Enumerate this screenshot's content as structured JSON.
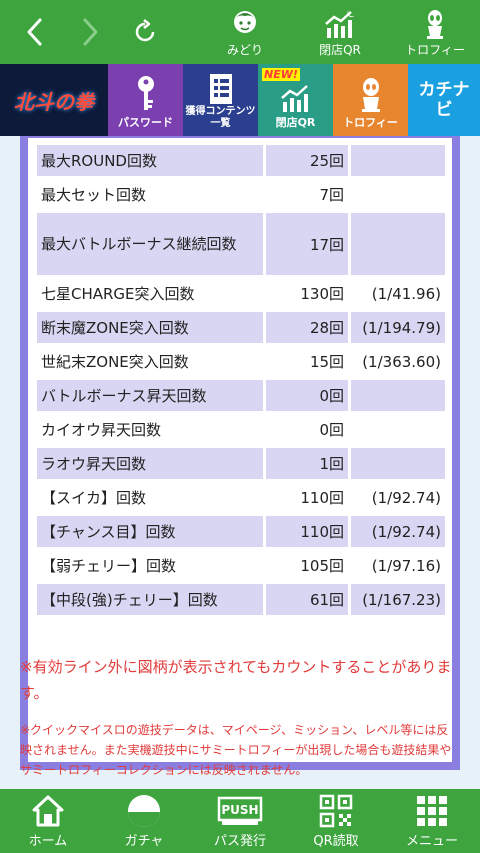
{
  "header": {
    "nav": [
      {
        "label": "みどり",
        "icon": "character-icon"
      },
      {
        "label": "閉店QR",
        "icon": "chart-moon-icon"
      },
      {
        "label": "トロフィー",
        "icon": "trophy-alien-icon"
      }
    ]
  },
  "banners": [
    {
      "label": "",
      "logo": "北斗の拳"
    },
    {
      "label": "パスワード",
      "color": "#7b3fb0"
    },
    {
      "label": "獲得コンテンツ一覧",
      "color": "#2b3f8f"
    },
    {
      "label": "閉店QR",
      "color": "#2a9d86",
      "badge": "NEW!"
    },
    {
      "label": "トロフィー",
      "color": "#e8852f"
    },
    {
      "label": "",
      "logo": "カチナビ",
      "color": "#1aa0e0"
    }
  ],
  "stats": [
    {
      "name": "最大ROUND回数",
      "count": "25回",
      "rate": ""
    },
    {
      "name": "最大セット回数",
      "count": "7回",
      "rate": ""
    },
    {
      "name": "最大バトルボーナス継続回数",
      "count": "17回",
      "rate": ""
    },
    {
      "name": "七星CHARGE突入回数",
      "count": "130回",
      "rate": "(1/41.96)"
    },
    {
      "name": "断末魔ZONE突入回数",
      "count": "28回",
      "rate": "(1/194.79)"
    },
    {
      "name": "世紀末ZONE突入回数",
      "count": "15回",
      "rate": "(1/363.60)"
    },
    {
      "name": "バトルボーナス昇天回数",
      "count": "0回",
      "rate": ""
    },
    {
      "name": "カイオウ昇天回数",
      "count": "0回",
      "rate": ""
    },
    {
      "name": "ラオウ昇天回数",
      "count": "1回",
      "rate": ""
    },
    {
      "name": "【スイカ】回数",
      "count": "110回",
      "rate": "(1/92.74)"
    },
    {
      "name": "【チャンス目】回数",
      "count": "110回",
      "rate": "(1/92.74)"
    },
    {
      "name": "【弱チェリー】回数",
      "count": "105回",
      "rate": "(1/97.16)"
    },
    {
      "name": "【中段(強)チェリー】回数",
      "count": "61回",
      "rate": "(1/167.23)"
    }
  ],
  "notes": {
    "note1": "※有効ライン外に図柄が表示されてもカウントすることがあります。",
    "note2": "※クイックマイスロの遊技データは、マイページ、ミッション、レベル等には反映されません。また実機遊技中にサミートロフィーが出現した場合も遊技結果やサミートロフィーコレクションには反映されません。"
  },
  "footer": [
    {
      "label": "ホーム",
      "icon": "home-icon"
    },
    {
      "label": "ガチャ",
      "icon": "gacha-icon"
    },
    {
      "label": "パス発行",
      "icon": "push-icon"
    },
    {
      "label": "QR読取",
      "icon": "qr-icon"
    },
    {
      "label": "メニュー",
      "icon": "menu-icon"
    }
  ]
}
